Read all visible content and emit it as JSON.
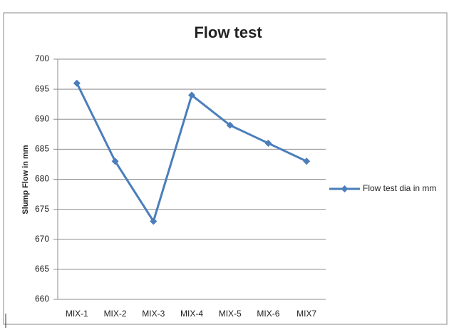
{
  "chart_data": {
    "type": "line",
    "title": "Flow test",
    "y_label": "Slump Flow in mm",
    "categories": [
      "MIX-1",
      "MIX-2",
      "MIX-3",
      "MIX-4",
      "MIX-5",
      "MIX-6",
      "MIX7"
    ],
    "series": [
      {
        "name": "Flow test dia in mm",
        "color": "#4a7ebb",
        "values": [
          696,
          683,
          673,
          694,
          689,
          686,
          683
        ]
      }
    ],
    "ylim": [
      660,
      700
    ],
    "yticks": [
      660,
      665,
      670,
      675,
      680,
      685,
      690,
      695,
      700
    ],
    "grid": true,
    "legend": "right"
  }
}
